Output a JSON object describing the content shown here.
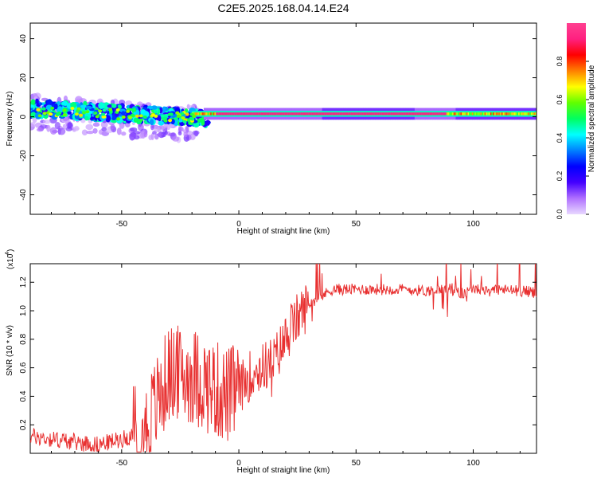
{
  "page_title": "C2E5.2025.168.04.14.E24",
  "chart_data": [
    {
      "type": "heatmap",
      "xlabel": "Height of straight line (km)",
      "ylabel": "Frequency (Hz)",
      "xlim": [
        -89,
        127
      ],
      "ylim": [
        -50,
        48
      ],
      "x_ticks": [
        -50,
        0,
        50,
        100
      ],
      "x_tick_labels": [
        "-50",
        "0",
        "50",
        "100"
      ],
      "y_ticks": [
        40,
        20,
        0,
        -20,
        -40
      ],
      "y_tick_labels": [
        "40",
        "20",
        "0",
        "-20",
        "-40"
      ],
      "colorbar": {
        "label": "Normalized spectral amplitude",
        "range": [
          0,
          1
        ],
        "ticks": [
          0.0,
          0.2,
          0.4,
          0.6,
          0.8
        ],
        "tick_labels": [
          "0.0",
          "0.2",
          "0.4",
          "0.6",
          "0.8"
        ],
        "colormap": [
          "#e8d8ff",
          "#b070ff",
          "#4400ff",
          "#0000ff",
          "#0080ff",
          "#00ffff",
          "#00ff60",
          "#60ff00",
          "#ffff00",
          "#ff8000",
          "#ff0000",
          "#ff2080",
          "#ff4090"
        ]
      },
      "description_points": [
        {
          "x_range": [
            -89,
            -15
          ],
          "freq_center": 2,
          "freq_spread": 6,
          "amplitude": 0.3
        },
        {
          "x_range": [
            -15,
            127
          ],
          "freq_center": 1.5,
          "freq_spread": 2,
          "amplitude": 0.9
        }
      ],
      "grid": false
    },
    {
      "type": "line",
      "xlabel": "Height of straight line (km)",
      "ylabel": "SNR (10 * v/v)",
      "y_multiplier_label": "(x10",
      "y_multiplier_exp": "4",
      "xlim": [
        -89,
        127
      ],
      "ylim": [
        0,
        1.33
      ],
      "x_ticks": [
        -50,
        0,
        50,
        100
      ],
      "x_tick_labels": [
        "-50",
        "0",
        "50",
        "100"
      ],
      "y_ticks": [
        0.2,
        0.4,
        0.6,
        0.8,
        1.0,
        1.2
      ],
      "y_tick_labels": [
        "0.2",
        "0.4",
        "0.6",
        "0.8",
        "1.0",
        "1.2"
      ],
      "series": [
        {
          "color": "#e83030",
          "x": [
            -89,
            -80,
            -70,
            -60,
            -50,
            -40,
            -35,
            -30,
            -25,
            -20,
            -15,
            -10,
            -5,
            0,
            5,
            10,
            15,
            20,
            25,
            30,
            35,
            40,
            50,
            60,
            70,
            80,
            90,
            95,
            100,
            110,
            120,
            127
          ],
          "y": [
            0.12,
            0.1,
            0.08,
            0.06,
            0.1,
            0.15,
            0.35,
            0.55,
            0.55,
            0.55,
            0.5,
            0.45,
            0.4,
            0.45,
            0.55,
            0.6,
            0.65,
            0.8,
            0.95,
            1.05,
            1.1,
            1.15,
            1.15,
            1.15,
            1.15,
            1.14,
            1.15,
            1.12,
            1.15,
            1.15,
            1.14,
            1.13
          ]
        }
      ],
      "grid": false
    }
  ]
}
